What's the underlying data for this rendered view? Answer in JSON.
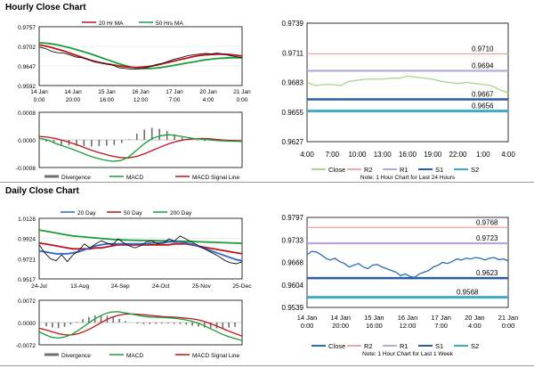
{
  "sections": {
    "hourly_title": "Hourly Close Chart",
    "daily_title": "Daily Close Chart"
  },
  "colors": {
    "ma_red": "#c0141b",
    "ma_green": "#1a9e3a",
    "ma_blue": "#2f66c8",
    "price": "#111111",
    "close_light_green": "#a9d58a",
    "close_blue": "#2a6db8",
    "r2": "#f2a8a8",
    "r1": "#b9a6d8",
    "s1": "#2a5ba8",
    "s2": "#40a8c8",
    "divergence": "#6e6e6e"
  },
  "chart_data": [
    {
      "id": "hourly-price",
      "type": "line",
      "x_tick_labels": [
        [
          "14 Jan",
          "0:00"
        ],
        [
          "14 Jan",
          "20:00"
        ],
        [
          "15 Jan",
          "16:00"
        ],
        [
          "16 Jan",
          "12:00"
        ],
        [
          "17 Jan",
          "7:00"
        ],
        [
          "20 Jan",
          "4:00"
        ],
        [
          "21 Jan",
          "0:00"
        ]
      ],
      "y_tick_labels": [
        "0.9757",
        "0.9702",
        "0.9647",
        "0.9592"
      ],
      "ylim": [
        0.9592,
        0.9757
      ],
      "legend": [
        "20 Hr MA",
        "50 Hrs MA"
      ],
      "series": [
        {
          "name": "Close",
          "values": [
            0.97,
            0.9696,
            0.9688,
            0.9684,
            0.9683,
            0.9678,
            0.9672,
            0.967,
            0.9665,
            0.9658,
            0.9655,
            0.9652,
            0.9649,
            0.9642,
            0.964,
            0.9638,
            0.9638,
            0.964,
            0.9645,
            0.9651,
            0.9654,
            0.966,
            0.9666,
            0.967,
            0.9675,
            0.9678,
            0.968,
            0.9682,
            0.9681,
            0.9683,
            0.968,
            0.9676,
            0.9673,
            0.967
          ]
        },
        {
          "name": "20 Hr MA",
          "values": [
            0.9706,
            0.9703,
            0.9699,
            0.9694,
            0.9689,
            0.9683,
            0.9677,
            0.9671,
            0.9665,
            0.966,
            0.9656,
            0.9653,
            0.965,
            0.9647,
            0.9645,
            0.9643,
            0.9643,
            0.9644,
            0.9646,
            0.9649,
            0.9653,
            0.9657,
            0.9661,
            0.9665,
            0.9669,
            0.9673,
            0.9676,
            0.9678,
            0.9679,
            0.968,
            0.968,
            0.9679,
            0.9677,
            0.9675
          ]
        },
        {
          "name": "50 Hrs MA",
          "values": [
            0.9712,
            0.9711,
            0.9709,
            0.9706,
            0.9702,
            0.9698,
            0.9693,
            0.9688,
            0.9683,
            0.9677,
            0.9671,
            0.9665,
            0.9659,
            0.9653,
            0.9648,
            0.9644,
            0.9641,
            0.964,
            0.964,
            0.9641,
            0.9643,
            0.9646,
            0.9649,
            0.9652,
            0.9655,
            0.9658,
            0.9661,
            0.9664,
            0.9666,
            0.9668,
            0.9669,
            0.967,
            0.967,
            0.967
          ]
        }
      ]
    },
    {
      "id": "hourly-macd",
      "type": "line",
      "y_tick_labels": [
        "0.0008",
        "0.0000",
        "-0.0008"
      ],
      "ylim": [
        -0.0008,
        0.0008
      ],
      "legend": [
        "Divergence",
        "MACD",
        "MACD Signal Line"
      ],
      "series": [
        {
          "name": "MACD",
          "values": [
            5e-05,
            0.0,
            -0.0001,
            -0.00018,
            -0.00026,
            -0.00035,
            -0.00045,
            -0.00052,
            -0.00058,
            -0.00062,
            -0.0006,
            -0.0005,
            -0.0003,
            -0.0001,
            5e-05,
            0.00012,
            0.00015,
            0.00012,
            8e-05,
            4e-05,
            2e-05,
            0.0,
            -2e-05,
            -3e-05,
            -4e-05,
            -5e-05
          ]
        },
        {
          "name": "MACD Signal Line",
          "values": [
            0.0001,
            8e-05,
            4e-05,
            -2e-05,
            -9e-05,
            -0.00017,
            -0.00026,
            -0.00034,
            -0.00041,
            -0.00047,
            -0.00051,
            -0.00052,
            -0.00048,
            -0.0004,
            -0.0003,
            -0.0002,
            -0.00011,
            -4e-05,
            1e-05,
            3e-05,
            4e-05,
            3e-05,
            1e-05,
            -1e-05,
            -2e-05,
            -3e-05
          ]
        },
        {
          "name": "Divergence",
          "values": [
            -5e-05,
            -8e-05,
            -0.00014,
            -0.00016,
            -0.00017,
            -0.00018,
            -0.00019,
            -0.00018,
            -0.00017,
            -0.00015,
            -9e-05,
            2e-05,
            0.00018,
            0.0003,
            0.00035,
            0.00032,
            0.00026,
            0.00016,
            7e-05,
            1e-05,
            -2e-05,
            -3e-05,
            -3e-05,
            -2e-05,
            -2e-05,
            -2e-05
          ]
        }
      ]
    },
    {
      "id": "hourly-levels",
      "type": "line",
      "x_tick_labels": [
        "4:00",
        "7:00",
        "10:00",
        "13:00",
        "16:00",
        "19:00",
        "22:00",
        "1:00",
        "4:00"
      ],
      "y_tick_labels": [
        "0.9739",
        "0.9711",
        "0.9683",
        "0.9655",
        "0.9627"
      ],
      "ylim": [
        0.9627,
        0.9739
      ],
      "legend": [
        "Close",
        "R2",
        "R1",
        "S1",
        "S2"
      ],
      "note": "Note: 1 Hour Chart for Last 24 Hours",
      "levels": [
        {
          "name": "R2",
          "value": 0.971,
          "label": "0.9710"
        },
        {
          "name": "R1",
          "value": 0.9694,
          "label": "0.9694"
        },
        {
          "name": "S1",
          "value": 0.9667,
          "label": "0.9667"
        },
        {
          "name": "S2",
          "value": 0.9656,
          "label": "0.9656"
        }
      ],
      "series": [
        {
          "name": "Close",
          "values": [
            0.9683,
            0.968,
            0.9681,
            0.9681,
            0.968,
            0.9684,
            0.9685,
            0.9686,
            0.9686,
            0.9686,
            0.9687,
            0.9687,
            0.9689,
            0.9688,
            0.9687,
            0.9686,
            0.9684,
            0.9683,
            0.9682,
            0.9683,
            0.9682,
            0.9681,
            0.968,
            0.9676,
            0.9673
          ]
        }
      ]
    },
    {
      "id": "daily-price",
      "type": "line",
      "x_tick_labels": [
        "24-Jul",
        "13-Aug",
        "24-Sep",
        "24-Oct",
        "25-Nov",
        "25-Dec"
      ],
      "y_tick_labels": [
        "1.0128",
        "0.9924",
        "0.9721",
        "0.9517"
      ],
      "ylim": [
        0.9517,
        1.0128
      ],
      "legend": [
        "20 Day",
        "50 Day",
        "200 Day"
      ],
      "series": [
        {
          "name": "Close",
          "values": [
            0.986,
            0.978,
            0.972,
            0.97,
            0.976,
            0.969,
            0.976,
            0.98,
            0.987,
            0.983,
            0.987,
            0.99,
            0.988,
            0.986,
            0.992,
            0.988,
            0.985,
            0.983,
            0.985,
            0.989,
            0.99,
            0.987,
            0.988,
            0.992,
            0.99,
            0.995,
            0.992,
            0.989,
            0.986,
            0.983,
            0.98,
            0.977,
            0.974,
            0.97,
            0.968,
            0.967,
            0.969
          ]
        },
        {
          "name": "20 Day",
          "values": [
            0.98,
            0.979,
            0.978,
            0.977,
            0.977,
            0.977,
            0.978,
            0.979,
            0.981,
            0.983,
            0.985,
            0.986,
            0.987,
            0.987,
            0.987,
            0.987,
            0.987,
            0.987,
            0.987,
            0.987,
            0.988,
            0.988,
            0.988,
            0.989,
            0.989,
            0.989,
            0.988,
            0.987,
            0.985,
            0.983,
            0.981,
            0.979,
            0.977,
            0.975,
            0.973,
            0.971,
            0.97
          ]
        },
        {
          "name": "50 Day",
          "values": [
            0.988,
            0.987,
            0.986,
            0.985,
            0.984,
            0.983,
            0.982,
            0.982,
            0.982,
            0.982,
            0.983,
            0.983,
            0.984,
            0.985,
            0.986,
            0.986,
            0.986,
            0.986,
            0.986,
            0.986,
            0.986,
            0.986,
            0.986,
            0.986,
            0.987,
            0.987,
            0.987,
            0.986,
            0.985,
            0.984,
            0.983,
            0.982,
            0.981,
            0.98,
            0.979,
            0.978,
            0.977
          ]
        },
        {
          "name": "200 Day",
          "values": [
            1.001,
            1.0,
            0.999,
            0.998,
            0.997,
            0.996,
            0.995,
            0.9945,
            0.994,
            0.9935,
            0.993,
            0.9925,
            0.992,
            0.9915,
            0.9912,
            0.991,
            0.9908,
            0.9906,
            0.9905,
            0.9904,
            0.9903,
            0.9902,
            0.9901,
            0.99,
            0.9899,
            0.9898,
            0.9896,
            0.9894,
            0.9892,
            0.989,
            0.9888,
            0.9886,
            0.9884,
            0.9882,
            0.988,
            0.9878,
            0.9876
          ]
        }
      ]
    },
    {
      "id": "daily-macd",
      "type": "line",
      "y_tick_labels": [
        "0.0072",
        "0.0000",
        "-0.0072"
      ],
      "ylim": [
        -0.0072,
        0.0072
      ],
      "legend": [
        "Divergence",
        "MACD",
        "MACD Signal Line"
      ],
      "series": [
        {
          "name": "MACD",
          "values": [
            -0.003,
            -0.004,
            -0.0048,
            -0.005,
            -0.0046,
            -0.0038,
            -0.0025,
            -0.001,
            0.0005,
            0.0018,
            0.0028,
            0.0034,
            0.0035,
            0.0032,
            0.0028,
            0.0024,
            0.002,
            0.0018,
            0.0017,
            0.0016,
            0.0015,
            0.0013,
            0.001,
            0.0006,
            0.0,
            -0.0008,
            -0.0018,
            -0.0028,
            -0.0038,
            -0.0046,
            -0.0052,
            -0.0058
          ]
        },
        {
          "name": "MACD Signal Line",
          "values": [
            -0.0018,
            -0.0024,
            -0.003,
            -0.0036,
            -0.004,
            -0.004,
            -0.0036,
            -0.0028,
            -0.0018,
            -0.0006,
            0.0006,
            0.0016,
            0.0023,
            0.0027,
            0.0028,
            0.0027,
            0.0025,
            0.0023,
            0.0021,
            0.0019,
            0.0018,
            0.0017,
            0.0015,
            0.0013,
            0.001,
            0.0005,
            -0.0002,
            -0.001,
            -0.0019,
            -0.0028,
            -0.0036,
            -0.0044
          ]
        },
        {
          "name": "Divergence",
          "values": [
            -0.0012,
            -0.0016,
            -0.0018,
            -0.0014,
            -0.0006,
            0.0002,
            0.0011,
            0.0018,
            0.0023,
            0.0024,
            0.0022,
            0.0018,
            0.0012,
            0.0005,
            0.0,
            -0.0003,
            -0.0005,
            -0.0005,
            -0.0004,
            -0.0003,
            -0.0003,
            -0.0004,
            -0.0005,
            -0.0007,
            -0.001,
            -0.0013,
            -0.0016,
            -0.0018,
            -0.0019,
            -0.0018,
            -0.0016,
            -0.0014
          ]
        }
      ]
    },
    {
      "id": "daily-levels",
      "type": "line",
      "x_tick_labels": [
        [
          "14 Jan",
          "0:00"
        ],
        [
          "14 Jan",
          "20:00"
        ],
        [
          "15 Jan",
          "16:00"
        ],
        [
          "16 Jan",
          "12:00"
        ],
        [
          "17 Jan",
          "7:00"
        ],
        [
          "20 Jan",
          "4:00"
        ],
        [
          "21 Jan",
          "0:00"
        ]
      ],
      "y_tick_labels": [
        "0.9797",
        "0.9733",
        "0.9668",
        "0.9604",
        "0.9539"
      ],
      "ylim": [
        0.9539,
        0.9797
      ],
      "legend": [
        "Close",
        "R2",
        "R1",
        "S1",
        "S2"
      ],
      "note": "Note: 1 Hour Chart for Last 1 Week",
      "levels": [
        {
          "name": "R2",
          "value": 0.9768,
          "label": "0.9768"
        },
        {
          "name": "R1",
          "value": 0.9723,
          "label": "0.9723"
        },
        {
          "name": "S1",
          "value": 0.9623,
          "label": "0.9623"
        },
        {
          "name": "S2",
          "value": 0.9568,
          "label": "0.9568"
        }
      ],
      "series": [
        {
          "name": "Close",
          "values": [
            0.969,
            0.97,
            0.9698,
            0.969,
            0.968,
            0.9675,
            0.968,
            0.967,
            0.9665,
            0.9655,
            0.966,
            0.9665,
            0.9655,
            0.965,
            0.966,
            0.9662,
            0.9655,
            0.965,
            0.9645,
            0.964,
            0.963,
            0.9635,
            0.9628,
            0.9625,
            0.9635,
            0.964,
            0.9645,
            0.9655,
            0.966,
            0.9668,
            0.9665,
            0.967,
            0.9678,
            0.9675,
            0.968,
            0.9678,
            0.9682,
            0.968,
            0.9675,
            0.968,
            0.9682,
            0.9676,
            0.9678,
            0.9672
          ]
        }
      ]
    }
  ]
}
